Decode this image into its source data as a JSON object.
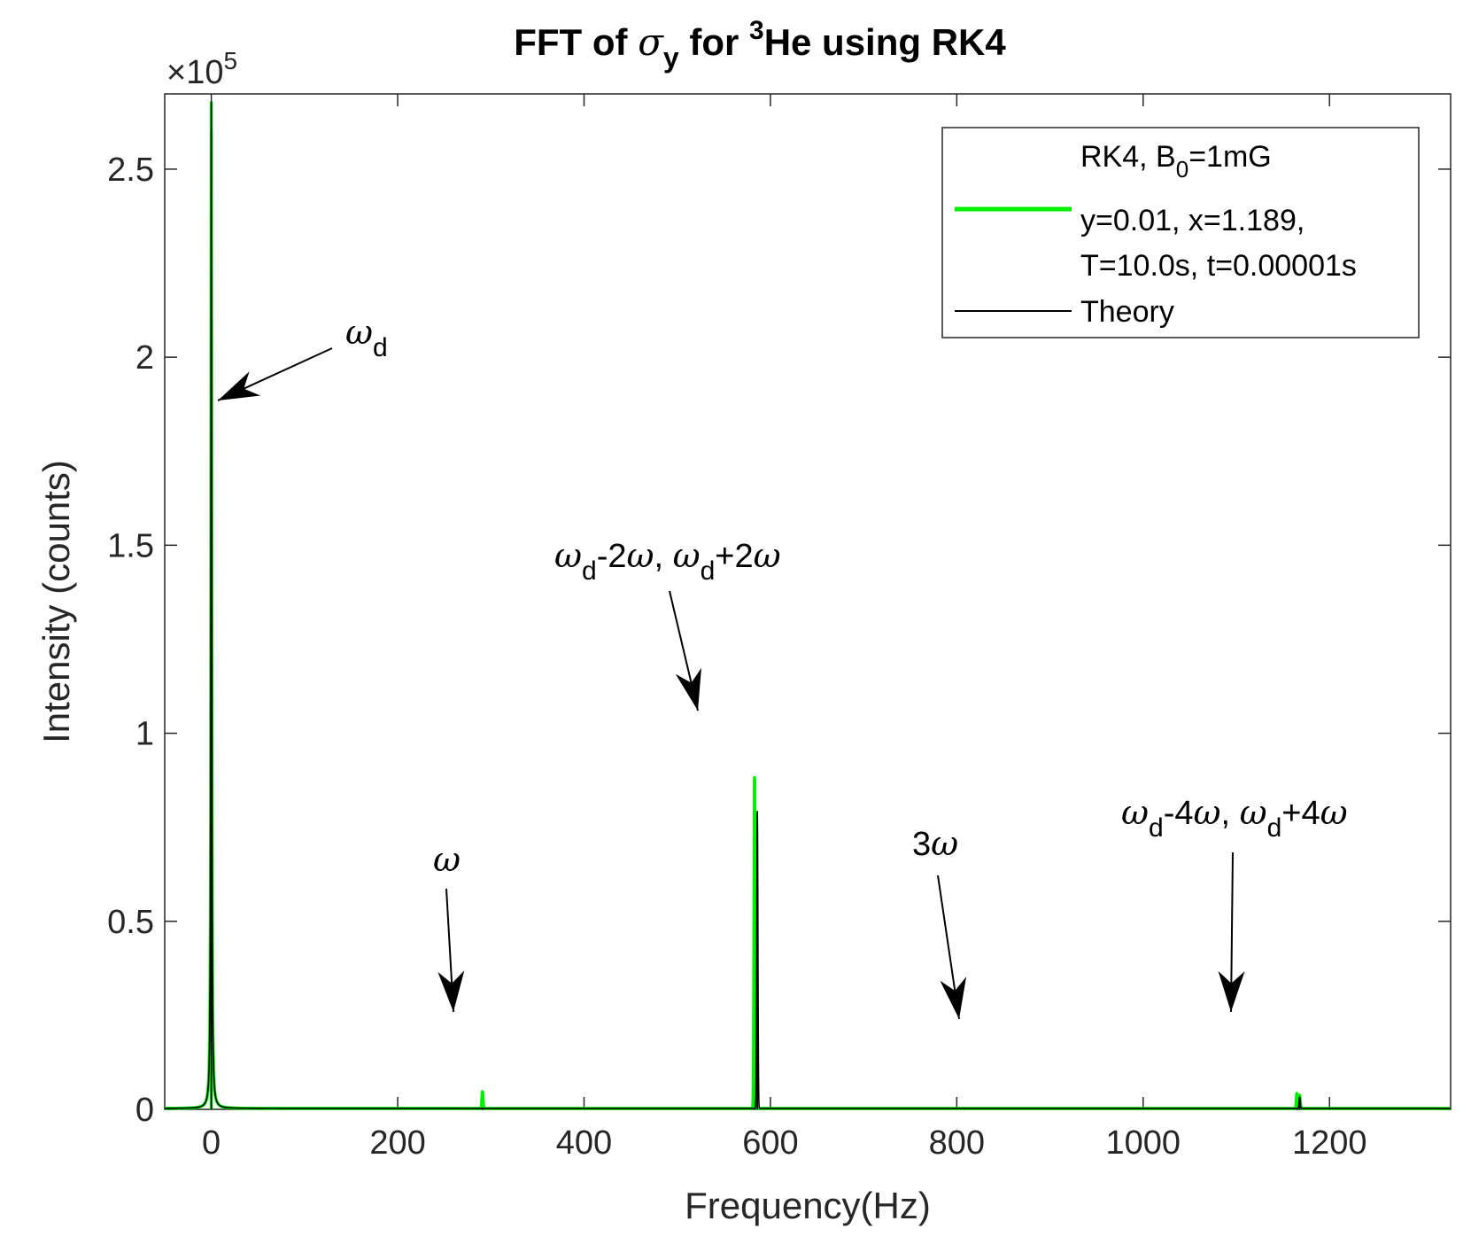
{
  "chart_data": {
    "type": "line",
    "title": {
      "prefix": "FFT of ",
      "sigma": "σ",
      "sigma_sub": "y",
      "middle": " for ",
      "sup": "3",
      "suffix": "He using RK4"
    },
    "xlabel": "Frequency(Hz)",
    "ylabel": "Intensity (counts)",
    "y_multiplier": {
      "base": "×10",
      "exp": "5"
    },
    "xlim": [
      -50,
      1330
    ],
    "ylim": [
      0,
      270000
    ],
    "x_ticks": [
      0,
      200,
      400,
      600,
      800,
      1000,
      1200
    ],
    "x_tick_labels": [
      "0",
      "200",
      "400",
      "600",
      "800",
      "1000",
      "1200"
    ],
    "y_ticks": [
      0,
      50000,
      100000,
      150000,
      200000,
      250000
    ],
    "y_tick_labels": [
      "0",
      "0.5",
      "1",
      "1.5",
      "2",
      "2.5"
    ],
    "grid": false,
    "legend_position": "top-right",
    "legend": {
      "header_main": "RK4, B",
      "header_sub": "0",
      "header_tail": "=1mG",
      "series_line1": "y=0.01, x=1.189,",
      "series_line2": "T=10.0s, t=0.00001s",
      "theory": "Theory"
    },
    "series": [
      {
        "color": "#00ee00",
        "peaks": [
          {
            "x": 0,
            "y": 268000
          },
          {
            "x": 291,
            "y": 4500
          },
          {
            "x": 583,
            "y": 88000
          },
          {
            "x": 1165,
            "y": 4000
          },
          {
            "x": 1168,
            "y": 3500
          }
        ]
      },
      {
        "color": "#000000",
        "peaks": [
          {
            "x": 0,
            "y": 268000
          },
          {
            "x": 586,
            "y": 79000
          },
          {
            "x": 1168,
            "y": 3000
          }
        ]
      }
    ],
    "annotations": [
      {
        "id": "wd",
        "parts": [
          [
            "ω",
            "greek"
          ],
          [
            "d",
            "sub"
          ]
        ],
        "text_x": 390,
        "text_y": 388,
        "arrow_from": [
          375,
          393
        ],
        "arrow_to": [
          246,
          452
        ]
      },
      {
        "id": "w",
        "parts": [
          [
            "ω",
            "greek"
          ]
        ],
        "text_x": 489,
        "text_y": 983,
        "arrow_from": [
          504,
          1003
        ],
        "arrow_to": [
          512,
          1142
        ]
      },
      {
        "id": "wd2w",
        "parts": [
          [
            "ω",
            "greek"
          ],
          [
            "d",
            "sub"
          ],
          [
            "-2",
            "normal"
          ],
          [
            "ω",
            "greek"
          ],
          [
            ", ",
            "normal"
          ],
          [
            "ω",
            "greek"
          ],
          [
            "d",
            "sub"
          ],
          [
            "+2",
            "normal"
          ],
          [
            "ω",
            "greek"
          ]
        ],
        "text_x": 626,
        "text_y": 640,
        "arrow_from": [
          756,
          667
        ],
        "arrow_to": [
          788,
          802
        ]
      },
      {
        "id": "3w",
        "parts": [
          [
            "3",
            "normal"
          ],
          [
            "ω",
            "greek"
          ]
        ],
        "text_x": 1030,
        "text_y": 965,
        "arrow_from": [
          1059,
          988
        ],
        "arrow_to": [
          1083,
          1150
        ]
      },
      {
        "id": "wd4w",
        "parts": [
          [
            "ω",
            "greek"
          ],
          [
            "d",
            "sub"
          ],
          [
            "-4",
            "normal"
          ],
          [
            "ω",
            "greek"
          ],
          [
            ", ",
            "normal"
          ],
          [
            "ω",
            "greek"
          ],
          [
            "d",
            "sub"
          ],
          [
            "+4",
            "normal"
          ],
          [
            "ω",
            "greek"
          ]
        ],
        "text_x": 1266,
        "text_y": 930,
        "arrow_from": [
          1392,
          962
        ],
        "arrow_to": [
          1390,
          1142
        ]
      }
    ]
  }
}
